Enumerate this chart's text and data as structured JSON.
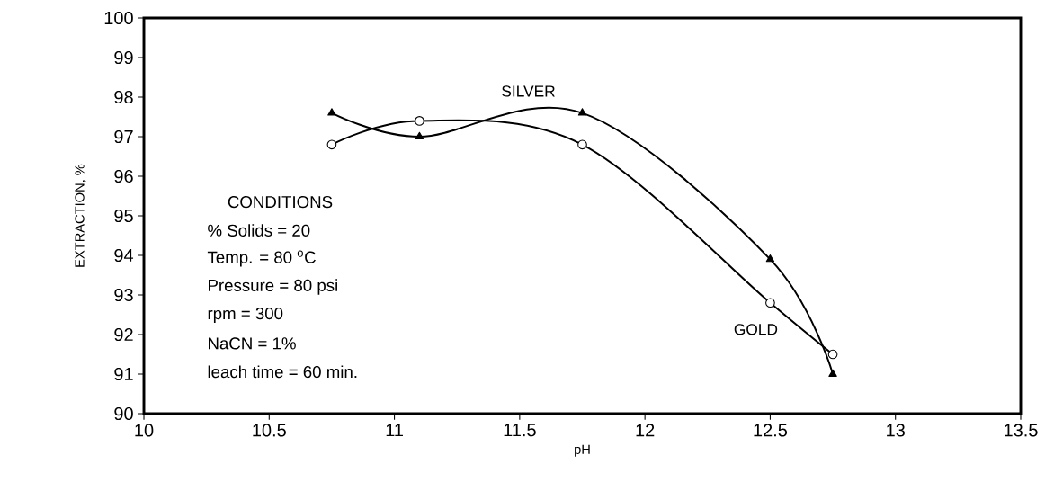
{
  "chart_data": {
    "type": "line",
    "xlabel": "pH",
    "ylabel": "EXTRACTION, %",
    "xlim": [
      10,
      13.5
    ],
    "xticks": [
      10,
      10.5,
      11,
      11.5,
      12,
      12.5,
      13,
      13.5
    ],
    "ylim": [
      90,
      100
    ],
    "yticks": [
      90,
      91,
      92,
      93,
      94,
      95,
      96,
      97,
      98,
      99,
      100
    ],
    "grid": false,
    "line_style": "solid",
    "series": [
      {
        "name": "SILVER",
        "color": "#000000",
        "marker": "triangle",
        "x": [
          10.75,
          11.1,
          11.75,
          12.5,
          12.75
        ],
        "values": [
          97.6,
          97.0,
          97.6,
          93.9,
          91.0
        ]
      },
      {
        "name": "GOLD",
        "color": "#000000",
        "marker": "circle",
        "x": [
          10.75,
          11.1,
          11.75,
          12.5,
          12.75
        ],
        "values": [
          96.8,
          97.4,
          96.8,
          92.8,
          91.5
        ]
      }
    ],
    "annotations": [
      "CONDITIONS",
      "% Solids = 20",
      "Temp. = 80 $^{o}$C",
      "Pressure = 80 psi",
      "rpm = 300",
      "NaCN = 1%",
      "leach time = 60 min."
    ]
  }
}
